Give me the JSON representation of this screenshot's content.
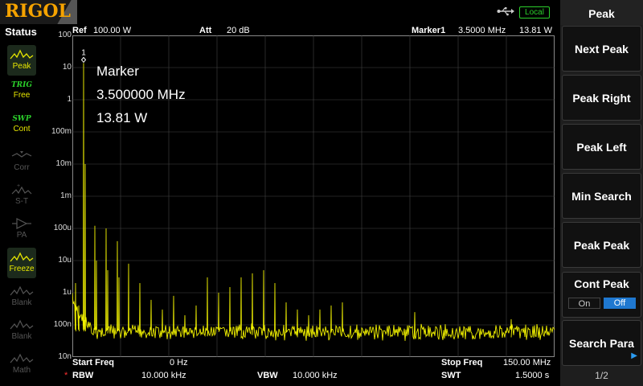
{
  "brand": {
    "logo_text": "RIGOL"
  },
  "status_bar": {
    "local_label": "Local"
  },
  "status": {
    "title": "Status",
    "items": [
      {
        "label": "Peak",
        "state": "active",
        "icon": "peak-wave-icon"
      },
      {
        "tag": "TRIG",
        "label": "Free",
        "state": "normal"
      },
      {
        "tag": "SWP",
        "label": "Cont",
        "state": "normal"
      },
      {
        "label": "Corr",
        "state": "dim",
        "icon": "corr-icon"
      },
      {
        "label": "S-T",
        "state": "dim",
        "icon": "st-icon"
      },
      {
        "label": "PA",
        "state": "dim",
        "icon": "pa-icon"
      },
      {
        "label": "Freeze",
        "state": "active",
        "icon": "freeze-wave-icon"
      },
      {
        "label": "Blank",
        "state": "dim",
        "icon": "blank-wave-icon"
      },
      {
        "label": "Blank",
        "state": "dim",
        "icon": "blank-wave-icon"
      },
      {
        "label": "Math",
        "state": "dim",
        "icon": "math-wave-icon"
      }
    ]
  },
  "header": {
    "ref_label": "Ref",
    "ref_value": "100.00 W",
    "att_label": "Att",
    "att_value": "20 dB",
    "marker_label": "Marker1",
    "marker_freq": "3.5000 MHz",
    "marker_level": "13.81 W"
  },
  "marker_readout": {
    "title": "Marker",
    "freq": "3.500000 MHz",
    "level": "13.81 W",
    "marker_number": "1"
  },
  "y_axis": {
    "labels": [
      "100",
      "10",
      "1",
      "100m",
      "10m",
      "1m",
      "100u",
      "10u",
      "1u",
      "100n",
      "10n"
    ]
  },
  "footer": {
    "start_label": "Start Freq",
    "start_value": "0 Hz",
    "stop_label": "Stop Freq",
    "stop_value": "150.00 MHz",
    "rbw_marker": "*",
    "rbw_label": "RBW",
    "rbw_value": "10.000 kHz",
    "vbw_label": "VBW",
    "vbw_value": "10.000 kHz",
    "swt_label": "SWT",
    "swt_value": "1.5000 s"
  },
  "softkeys": {
    "title": "Peak",
    "next_peak": "Next Peak",
    "peak_right": "Peak Right",
    "peak_left": "Peak Left",
    "min_search": "Min Search",
    "peak_peak": "Peak Peak",
    "cont_peak": "Cont Peak",
    "on": "On",
    "off": "Off",
    "search_para": "Search Para",
    "page": "1/2"
  },
  "colors": {
    "trace": "#f0f000",
    "grid": "#444444",
    "accent_blue": "#1f78d0",
    "local_green": "#2bd02b",
    "logo_orange": "#f5a300"
  },
  "chart_data": {
    "type": "line",
    "x_range_mhz": [
      0,
      150
    ],
    "y_scale": "log",
    "y_range_w": [
      1e-08,
      100
    ],
    "peaks": [
      {
        "freq_mhz": 1.0,
        "level_w": 2e-06
      },
      {
        "freq_mhz": 2.0,
        "level_w": 4e-07
      },
      {
        "freq_mhz": 3.5,
        "level_w": 13.81
      },
      {
        "freq_mhz": 4.0,
        "level_w": 0.01
      },
      {
        "freq_mhz": 7.0,
        "level_w": 0.00012
      },
      {
        "freq_mhz": 7.5,
        "level_w": 1e-05
      },
      {
        "freq_mhz": 10.5,
        "level_w": 0.0001
      },
      {
        "freq_mhz": 11.0,
        "level_w": 5e-06
      },
      {
        "freq_mhz": 14.0,
        "level_w": 4e-05
      },
      {
        "freq_mhz": 14.5,
        "level_w": 3e-06
      },
      {
        "freq_mhz": 17.5,
        "level_w": 8e-06
      },
      {
        "freq_mhz": 21.0,
        "level_w": 2e-06
      },
      {
        "freq_mhz": 24.5,
        "level_w": 6e-07
      },
      {
        "freq_mhz": 28.0,
        "level_w": 3e-07
      },
      {
        "freq_mhz": 31.5,
        "level_w": 8e-07
      },
      {
        "freq_mhz": 35.0,
        "level_w": 2e-07
      },
      {
        "freq_mhz": 38.5,
        "level_w": 4e-07
      },
      {
        "freq_mhz": 42.0,
        "level_w": 3e-06
      },
      {
        "freq_mhz": 45.5,
        "level_w": 1e-06
      },
      {
        "freq_mhz": 49.0,
        "level_w": 1.5e-06
      },
      {
        "freq_mhz": 52.5,
        "level_w": 3e-06
      },
      {
        "freq_mhz": 56.0,
        "level_w": 4e-06
      },
      {
        "freq_mhz": 59.5,
        "level_w": 5e-06
      },
      {
        "freq_mhz": 63.0,
        "level_w": 2e-06
      },
      {
        "freq_mhz": 66.5,
        "level_w": 5e-07
      },
      {
        "freq_mhz": 70.0,
        "level_w": 3e-07
      },
      {
        "freq_mhz": 73.5,
        "level_w": 2e-07
      },
      {
        "freq_mhz": 77.0,
        "level_w": 3e-07
      },
      {
        "freq_mhz": 80.5,
        "level_w": 4e-07
      },
      {
        "freq_mhz": 84.0,
        "level_w": 5e-07
      },
      {
        "freq_mhz": 106.5,
        "level_w": 2.5e-07
      },
      {
        "freq_mhz": 136.5,
        "level_w": 1.5e-07
      }
    ],
    "noise_floor_w": 5e-08
  }
}
